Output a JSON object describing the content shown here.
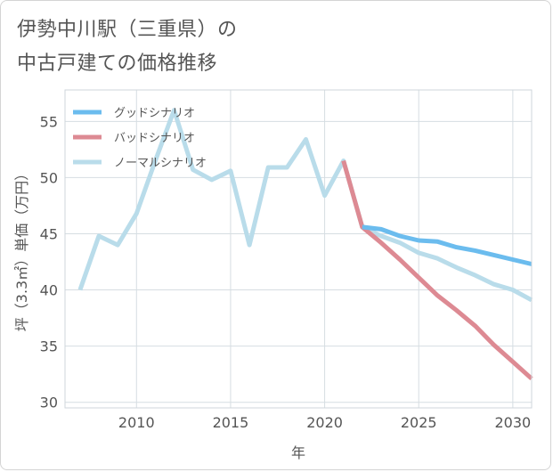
{
  "title_lines": [
    "伊勢中川駅（三重県）の",
    "中古戸建ての価格推移"
  ],
  "chart_data": {
    "type": "line",
    "title": "伊勢中川駅（三重県）の中古戸建ての価格推移",
    "xlabel": "年",
    "ylabel": "坪（3.3㎡）単価（万円）",
    "xlim": [
      2006.2,
      2031
    ],
    "ylim": [
      29.5,
      57.8
    ],
    "xticks": [
      2010,
      2015,
      2020,
      2025,
      2030
    ],
    "yticks": [
      30,
      35,
      40,
      45,
      50,
      55
    ],
    "legend_position": "top-left",
    "series": [
      {
        "name": "グッドシナリオ",
        "color": "#6bbcee",
        "x": [
          2022,
          2023,
          2024,
          2025,
          2026,
          2027,
          2028,
          2029,
          2030,
          2031
        ],
        "values": [
          45.6,
          45.4,
          44.8,
          44.4,
          44.3,
          43.8,
          43.5,
          43.1,
          42.7,
          42.3
        ]
      },
      {
        "name": "バッドシナリオ",
        "color": "#dd8a93",
        "x": [
          2021,
          2022,
          2023,
          2024,
          2025,
          2026,
          2027,
          2028,
          2029,
          2030,
          2031
        ],
        "values": [
          51.5,
          45.6,
          44.2,
          42.7,
          41.1,
          39.5,
          38.2,
          36.8,
          35.1,
          33.6,
          32.1
        ]
      },
      {
        "name": "ノーマルシナリオ",
        "color": "#b9dcea",
        "x": [
          2007,
          2008,
          2009,
          2010,
          2011,
          2012,
          2013,
          2014,
          2015,
          2016,
          2017,
          2018,
          2019,
          2020,
          2021,
          2022,
          2023,
          2024,
          2025,
          2026,
          2027,
          2028,
          2029,
          2030,
          2031
        ],
        "values": [
          40.0,
          44.8,
          44.0,
          46.8,
          51.5,
          56.0,
          50.7,
          49.8,
          50.6,
          44.0,
          50.9,
          50.9,
          53.4,
          48.4,
          51.5,
          45.6,
          44.8,
          44.2,
          43.3,
          42.8,
          42.0,
          41.3,
          40.5,
          40.0,
          39.1
        ]
      }
    ]
  }
}
